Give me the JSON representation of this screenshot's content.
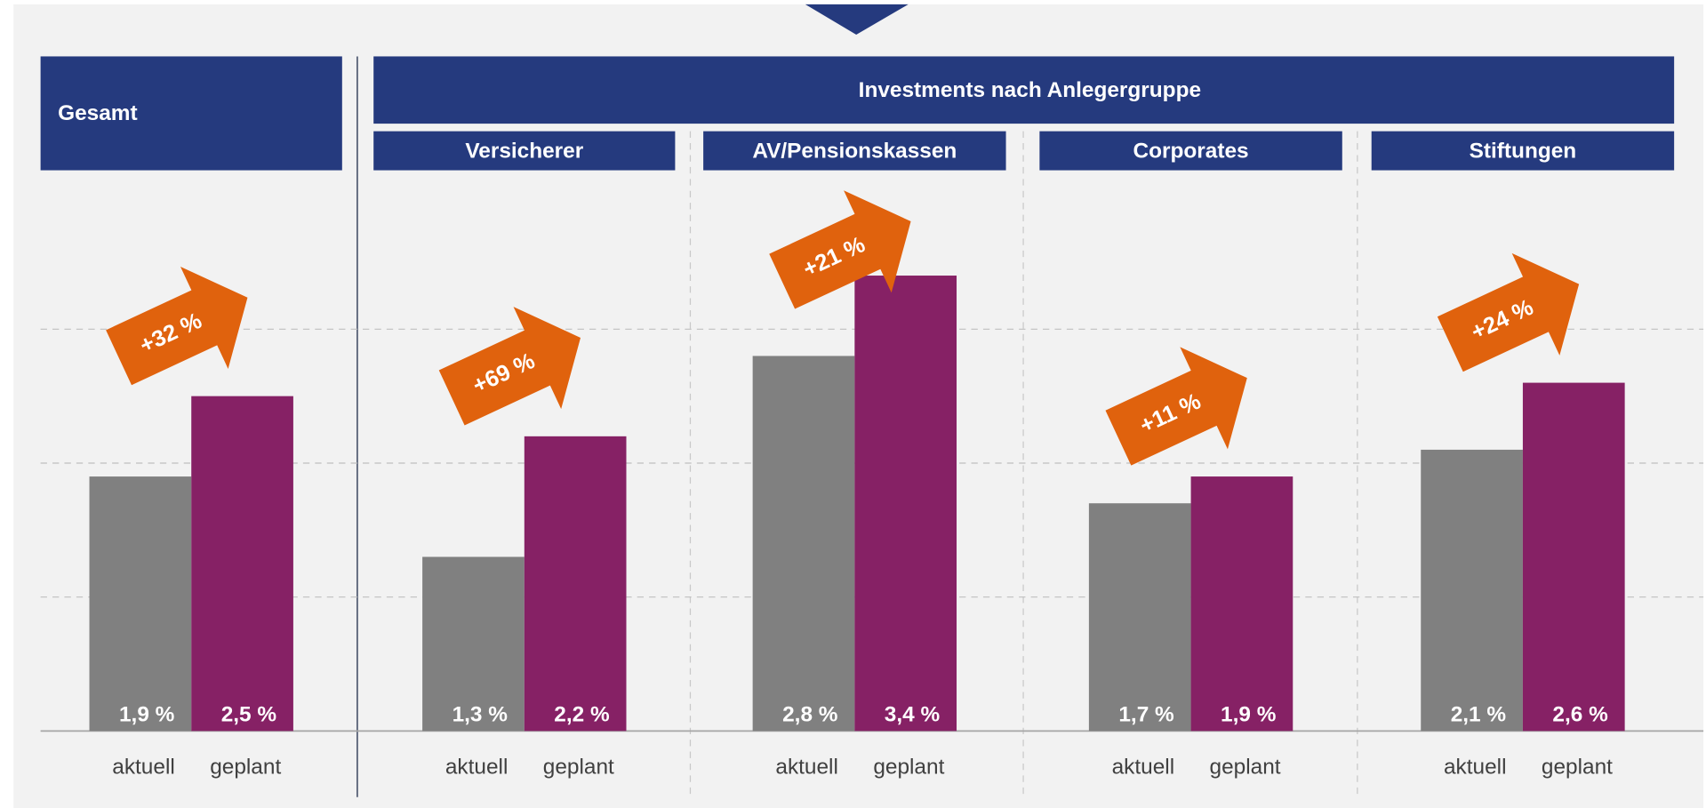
{
  "chart_data": {
    "type": "bar",
    "header": "Investments nach Anlegergruppe",
    "categories": [
      "aktuell",
      "geplant"
    ],
    "colors": [
      "#808080",
      "#862165"
    ],
    "ylim": [
      0,
      4
    ],
    "yticks": [
      0,
      1,
      2,
      3
    ],
    "grid": true,
    "groups": [
      {
        "title": "Gesamt",
        "values": [
          1.9,
          2.5
        ],
        "value_labels": [
          "1,9 %",
          "2,5 %"
        ],
        "change": "+32 %"
      },
      {
        "title": "Versicherer",
        "values": [
          1.3,
          2.2
        ],
        "value_labels": [
          "1,3 %",
          "2,2 %"
        ],
        "change": "+69 %"
      },
      {
        "title": "AV/Pensionskassen",
        "values": [
          2.8,
          3.4
        ],
        "value_labels": [
          "2,8 %",
          "3,4 %"
        ],
        "change": "+21 %"
      },
      {
        "title": "Corporates",
        "values": [
          1.7,
          1.9
        ],
        "value_labels": [
          "1,7 %",
          "1,9 %"
        ],
        "change": "+11 %"
      },
      {
        "title": "Stiftungen",
        "values": [
          2.1,
          2.6
        ],
        "value_labels": [
          "2,1 %",
          "2,6 %"
        ],
        "change": "+24 %"
      }
    ]
  }
}
